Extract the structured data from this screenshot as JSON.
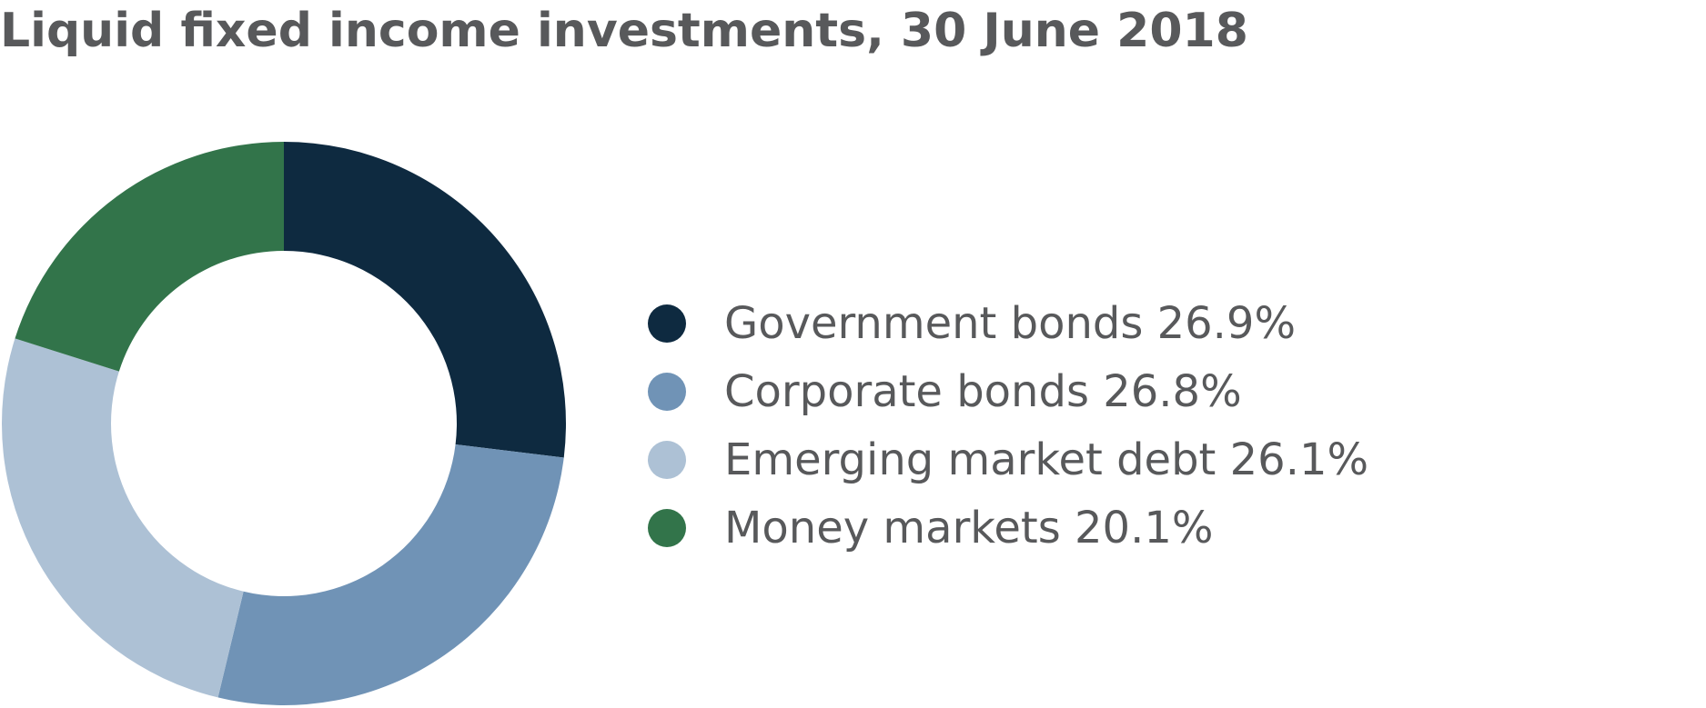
{
  "chart_data": {
    "type": "pie",
    "title": "Liquid fixed income investments, 30 June 2018",
    "categories": [
      "Government bonds",
      "Corporate bonds",
      "Emerging market debt",
      "Money markets"
    ],
    "values": [
      26.9,
      26.8,
      26.1,
      20.1
    ],
    "unit": "%",
    "legend_labels": [
      "Government bonds 26.9%",
      "Corporate bonds 26.8%",
      "Emerging market debt 26.1%",
      "Money markets 20.1%"
    ],
    "colors": [
      "#0e2a40",
      "#7093b6",
      "#adc1d5",
      "#32744a"
    ],
    "donut": true,
    "legend_position": "right"
  }
}
